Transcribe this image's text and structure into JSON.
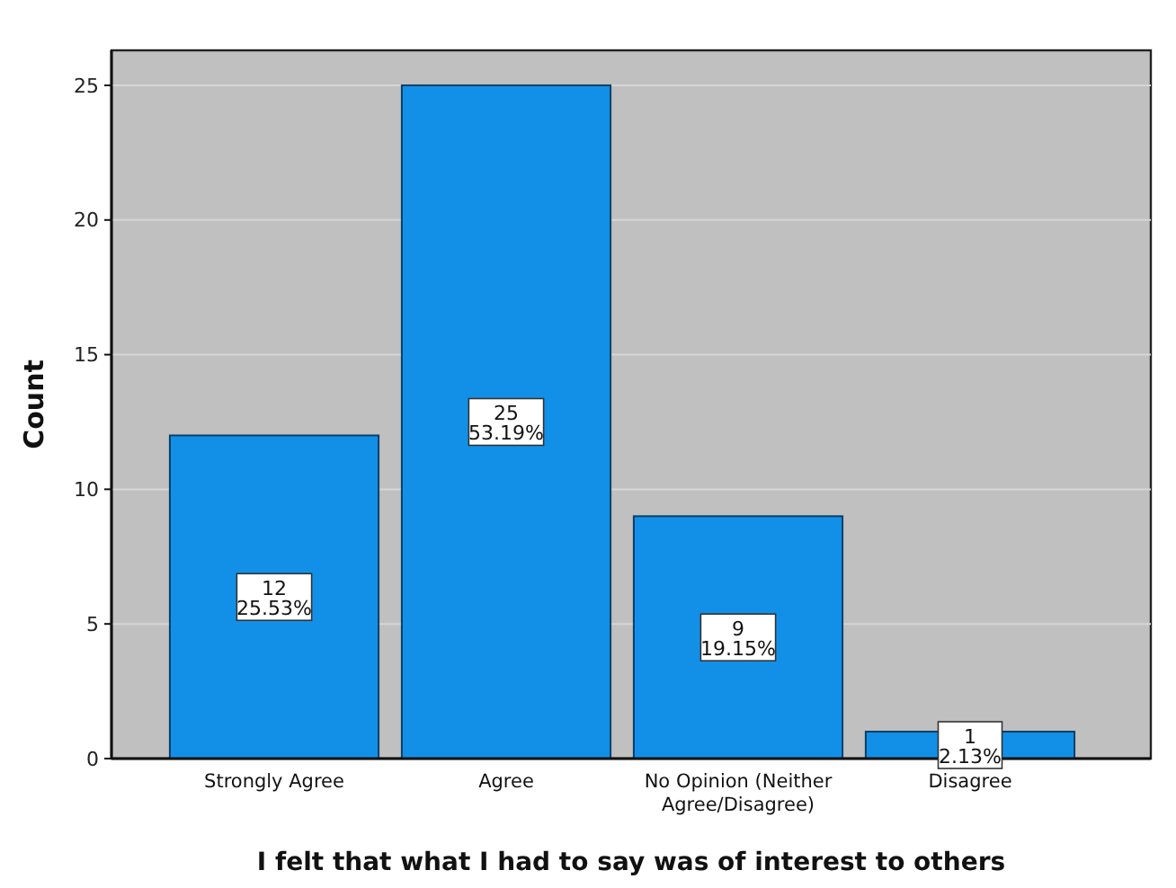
{
  "chart_data": {
    "type": "bar",
    "xlabel": "I felt that what I had to say was of interest to others",
    "ylabel": "Count",
    "categories": [
      "Strongly Agree",
      "Agree",
      "No Opinion (Neither Agree/Disagree)",
      "Disagree"
    ],
    "values": [
      12,
      25,
      9,
      1
    ],
    "color": "#1290e8",
    "value_labels": [
      "12\n25.53%",
      "25\n53.19%",
      "9\n19.15%",
      "1\n2.13%"
    ],
    "ylim": [
      0,
      26.3
    ],
    "yticks": [
      0,
      5,
      10,
      15,
      20,
      25
    ],
    "grid": "y"
  }
}
